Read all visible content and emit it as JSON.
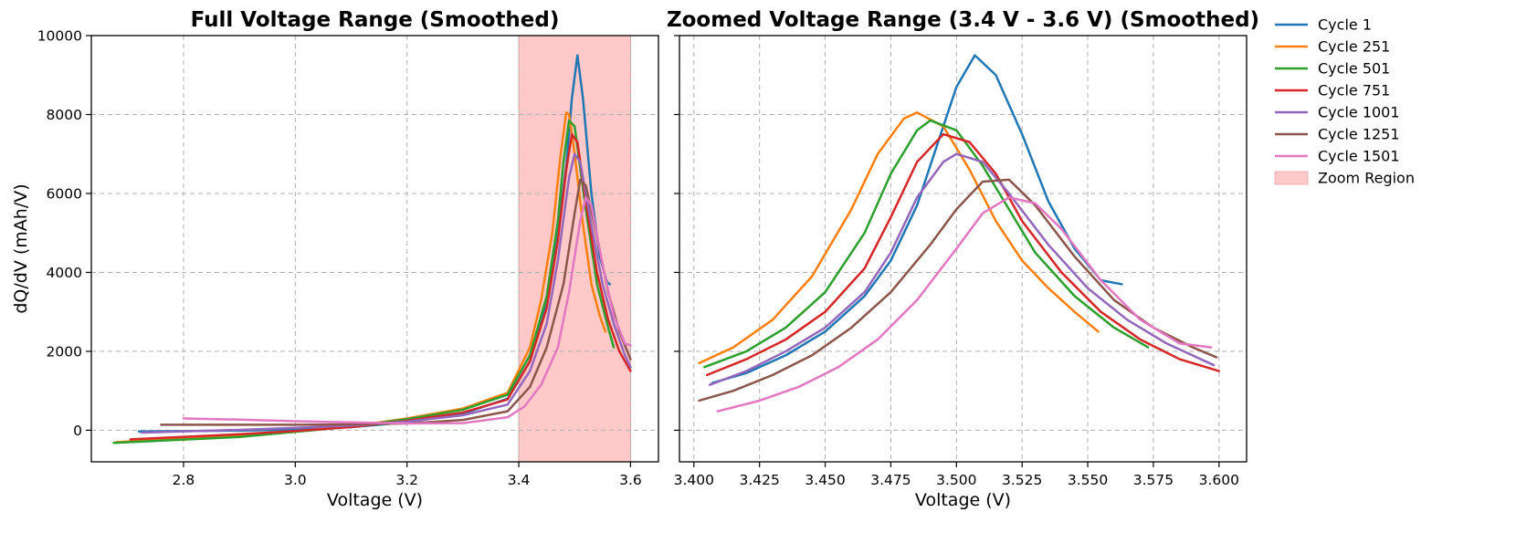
{
  "chart_data": [
    {
      "type": "line",
      "title": "Full Voltage Range (Smoothed)",
      "xlabel": "Voltage (V)",
      "ylabel": "dQ/dV (mAh/V)",
      "xlim": [
        2.635,
        3.65
      ],
      "ylim": [
        -800,
        10000
      ],
      "xticks": [
        2.8,
        3.0,
        3.2,
        3.4,
        3.6
      ],
      "xtick_labels": [
        "2.8",
        "3.0",
        "3.2",
        "3.4",
        "3.6"
      ],
      "yticks": [
        0,
        2000,
        4000,
        6000,
        8000,
        10000
      ],
      "ytick_labels": [
        "0",
        "2000",
        "4000",
        "6000",
        "8000",
        "10000"
      ],
      "grid": true,
      "zoom_region": {
        "x0": 3.4,
        "x1": 3.6,
        "color": "#ffc9c9"
      },
      "series": [
        {
          "name": "Cycle 1",
          "color": "#1f77b4",
          "x": [
            2.72,
            2.9,
            3.0,
            3.1,
            3.2,
            3.3,
            3.38,
            3.42,
            3.45,
            3.47,
            3.485,
            3.495,
            3.505,
            3.515,
            3.53,
            3.545,
            3.558,
            3.563
          ],
          "y": [
            -30,
            -10,
            20,
            80,
            200,
            420,
            800,
            1750,
            3300,
            5000,
            6700,
            8400,
            9500,
            8400,
            6000,
            4400,
            3750,
            3700
          ]
        },
        {
          "name": "Cycle 251",
          "color": "#ff7f0e",
          "x": [
            2.68,
            2.9,
            3.0,
            3.1,
            3.2,
            3.3,
            3.38,
            3.42,
            3.44,
            3.46,
            3.475,
            3.485,
            3.49,
            3.5,
            3.515,
            3.53,
            3.545,
            3.555
          ],
          "y": [
            -300,
            -150,
            -30,
            100,
            300,
            550,
            950,
            2100,
            3300,
            5000,
            7000,
            8050,
            8000,
            7000,
            5200,
            3700,
            2900,
            2500
          ]
        },
        {
          "name": "Cycle 501",
          "color": "#2ca02c",
          "x": [
            2.675,
            2.9,
            3.0,
            3.1,
            3.2,
            3.3,
            3.38,
            3.42,
            3.45,
            3.47,
            3.48,
            3.49,
            3.5,
            3.52,
            3.54,
            3.56,
            3.57
          ],
          "y": [
            -320,
            -170,
            -40,
            90,
            280,
            520,
            900,
            1900,
            3400,
            5300,
            6800,
            7850,
            7700,
            5600,
            3700,
            2600,
            2100
          ]
        },
        {
          "name": "Cycle 751",
          "color": "#d62728",
          "x": [
            2.705,
            2.9,
            3.0,
            3.1,
            3.2,
            3.3,
            3.38,
            3.42,
            3.45,
            3.47,
            3.485,
            3.495,
            3.505,
            3.52,
            3.54,
            3.56,
            3.58,
            3.6
          ],
          "y": [
            -230,
            -100,
            -20,
            80,
            240,
            450,
            780,
            1750,
            3100,
            4800,
            6600,
            7500,
            7300,
            5800,
            4000,
            2800,
            2000,
            1500
          ]
        },
        {
          "name": "Cycle 1001",
          "color": "#9467bd",
          "x": [
            2.725,
            2.9,
            3.0,
            3.1,
            3.2,
            3.3,
            3.38,
            3.42,
            3.45,
            3.47,
            3.49,
            3.5,
            3.51,
            3.53,
            3.55,
            3.57,
            3.59,
            3.6
          ],
          "y": [
            -60,
            10,
            60,
            120,
            220,
            380,
            650,
            1500,
            2700,
            4300,
            6400,
            7000,
            6800,
            5200,
            3700,
            2700,
            1900,
            1600
          ]
        },
        {
          "name": "Cycle 1251",
          "color": "#8c564b",
          "x": [
            2.76,
            2.9,
            3.0,
            3.1,
            3.2,
            3.3,
            3.38,
            3.42,
            3.45,
            3.48,
            3.5,
            3.51,
            3.52,
            3.54,
            3.56,
            3.58,
            3.6
          ],
          "y": [
            140,
            140,
            140,
            150,
            170,
            260,
            480,
            1100,
            2100,
            3700,
            5500,
            6350,
            6200,
            4900,
            3500,
            2500,
            1800
          ]
        },
        {
          "name": "Cycle 1501",
          "color": "#e377c2",
          "x": [
            2.8,
            2.9,
            3.0,
            3.1,
            3.2,
            3.3,
            3.38,
            3.41,
            3.44,
            3.47,
            3.49,
            3.51,
            3.52,
            3.53,
            3.55,
            3.57,
            3.59,
            3.6
          ],
          "y": [
            300,
            270,
            230,
            200,
            170,
            180,
            330,
            600,
            1150,
            2100,
            3500,
            5300,
            5900,
            5700,
            4200,
            2900,
            2200,
            2150
          ]
        }
      ]
    },
    {
      "type": "line",
      "title": "Zoomed Voltage Range (3.4 V - 3.6 V) (Smoothed)",
      "xlabel": "Voltage (V)",
      "ylabel": "",
      "xlim": [
        3.3945,
        3.6105
      ],
      "ylim": [
        -800,
        10000
      ],
      "xticks": [
        3.4,
        3.425,
        3.45,
        3.475,
        3.5,
        3.525,
        3.55,
        3.575,
        3.6
      ],
      "xtick_labels": [
        "3.400",
        "3.425",
        "3.450",
        "3.475",
        "3.500",
        "3.525",
        "3.550",
        "3.575",
        "3.600"
      ],
      "yticks": [
        0,
        2000,
        4000,
        6000,
        8000,
        10000
      ],
      "grid": true,
      "series": [
        {
          "name": "Cycle 1",
          "color": "#1f77b4",
          "x": [
            3.407,
            3.42,
            3.435,
            3.45,
            3.465,
            3.475,
            3.485,
            3.495,
            3.5,
            3.507,
            3.515,
            3.525,
            3.535,
            3.545,
            3.555,
            3.563
          ],
          "y": [
            1200,
            1450,
            1900,
            2500,
            3400,
            4300,
            5700,
            7700,
            8700,
            9500,
            9000,
            7500,
            5800,
            4600,
            3800,
            3700
          ]
        },
        {
          "name": "Cycle 251",
          "color": "#ff7f0e",
          "x": [
            3.402,
            3.415,
            3.43,
            3.445,
            3.46,
            3.47,
            3.48,
            3.485,
            3.495,
            3.505,
            3.515,
            3.525,
            3.535,
            3.545,
            3.554
          ],
          "y": [
            1700,
            2100,
            2800,
            3900,
            5600,
            7000,
            7900,
            8050,
            7700,
            6600,
            5300,
            4300,
            3600,
            3000,
            2500
          ]
        },
        {
          "name": "Cycle 501",
          "color": "#2ca02c",
          "x": [
            3.404,
            3.42,
            3.435,
            3.45,
            3.465,
            3.475,
            3.485,
            3.49,
            3.5,
            3.51,
            3.52,
            3.53,
            3.545,
            3.56,
            3.573
          ],
          "y": [
            1600,
            2000,
            2600,
            3500,
            5000,
            6500,
            7600,
            7850,
            7600,
            6700,
            5600,
            4500,
            3400,
            2600,
            2100
          ]
        },
        {
          "name": "Cycle 751",
          "color": "#d62728",
          "x": [
            3.405,
            3.42,
            3.435,
            3.45,
            3.465,
            3.475,
            3.485,
            3.495,
            3.505,
            3.515,
            3.525,
            3.54,
            3.555,
            3.57,
            3.585,
            3.6
          ],
          "y": [
            1400,
            1800,
            2300,
            3000,
            4100,
            5400,
            6800,
            7500,
            7300,
            6500,
            5300,
            4000,
            3000,
            2300,
            1800,
            1500
          ]
        },
        {
          "name": "Cycle 1001",
          "color": "#9467bd",
          "x": [
            3.406,
            3.42,
            3.435,
            3.45,
            3.465,
            3.475,
            3.485,
            3.495,
            3.5,
            3.51,
            3.52,
            3.535,
            3.55,
            3.565,
            3.58,
            3.598
          ],
          "y": [
            1150,
            1500,
            2000,
            2600,
            3500,
            4500,
            5900,
            6800,
            7000,
            6800,
            6000,
            4700,
            3600,
            2800,
            2200,
            1650
          ]
        },
        {
          "name": "Cycle 1251",
          "color": "#8c564b",
          "x": [
            3.402,
            3.415,
            3.43,
            3.445,
            3.46,
            3.475,
            3.49,
            3.5,
            3.51,
            3.52,
            3.53,
            3.545,
            3.56,
            3.575,
            3.59,
            3.599
          ],
          "y": [
            750,
            1000,
            1400,
            1900,
            2600,
            3500,
            4700,
            5600,
            6300,
            6350,
            5700,
            4400,
            3300,
            2600,
            2100,
            1850
          ]
        },
        {
          "name": "Cycle 1501",
          "color": "#e377c2",
          "x": [
            3.409,
            3.425,
            3.44,
            3.455,
            3.47,
            3.485,
            3.5,
            3.51,
            3.52,
            3.53,
            3.54,
            3.555,
            3.57,
            3.585,
            3.597
          ],
          "y": [
            480,
            750,
            1100,
            1600,
            2300,
            3300,
            4600,
            5500,
            5900,
            5750,
            5100,
            3800,
            2800,
            2200,
            2100
          ]
        }
      ]
    }
  ],
  "legend": {
    "placement": "outside-right",
    "items": [
      {
        "label": "Cycle 1",
        "color": "#1f77b4",
        "kind": "line"
      },
      {
        "label": "Cycle 251",
        "color": "#ff7f0e",
        "kind": "line"
      },
      {
        "label": "Cycle 501",
        "color": "#2ca02c",
        "kind": "line"
      },
      {
        "label": "Cycle 751",
        "color": "#d62728",
        "kind": "line"
      },
      {
        "label": "Cycle 1001",
        "color": "#9467bd",
        "kind": "line"
      },
      {
        "label": "Cycle 1251",
        "color": "#8c564b",
        "kind": "line"
      },
      {
        "label": "Cycle 1501",
        "color": "#e377c2",
        "kind": "line"
      },
      {
        "label": "Zoom Region",
        "color": "#ffc9c9",
        "kind": "patch"
      }
    ]
  }
}
